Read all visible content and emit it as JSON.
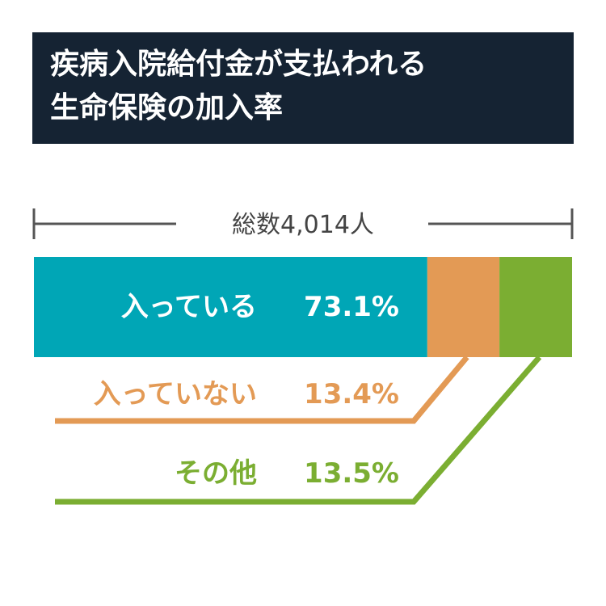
{
  "title": {
    "line1": "疾病入院給付金が支払われる",
    "line2": "生命保険の加入率"
  },
  "total_label": "総数4,014人",
  "colors": {
    "title_bg": "#152333",
    "joined": "#00a6b6",
    "not_joined": "#e39a55",
    "other": "#7bae32",
    "bracket": "#555555"
  },
  "chart_data": {
    "type": "bar",
    "orientation": "horizontal-stacked-100",
    "categories": [
      "入っている",
      "入っていない",
      "その他"
    ],
    "values": [
      73.1,
      13.4,
      13.5
    ],
    "value_labels": [
      "73.1%",
      "13.4%",
      "13.5%"
    ],
    "total_label": "総数4,014人",
    "xlim": [
      0,
      100
    ]
  }
}
